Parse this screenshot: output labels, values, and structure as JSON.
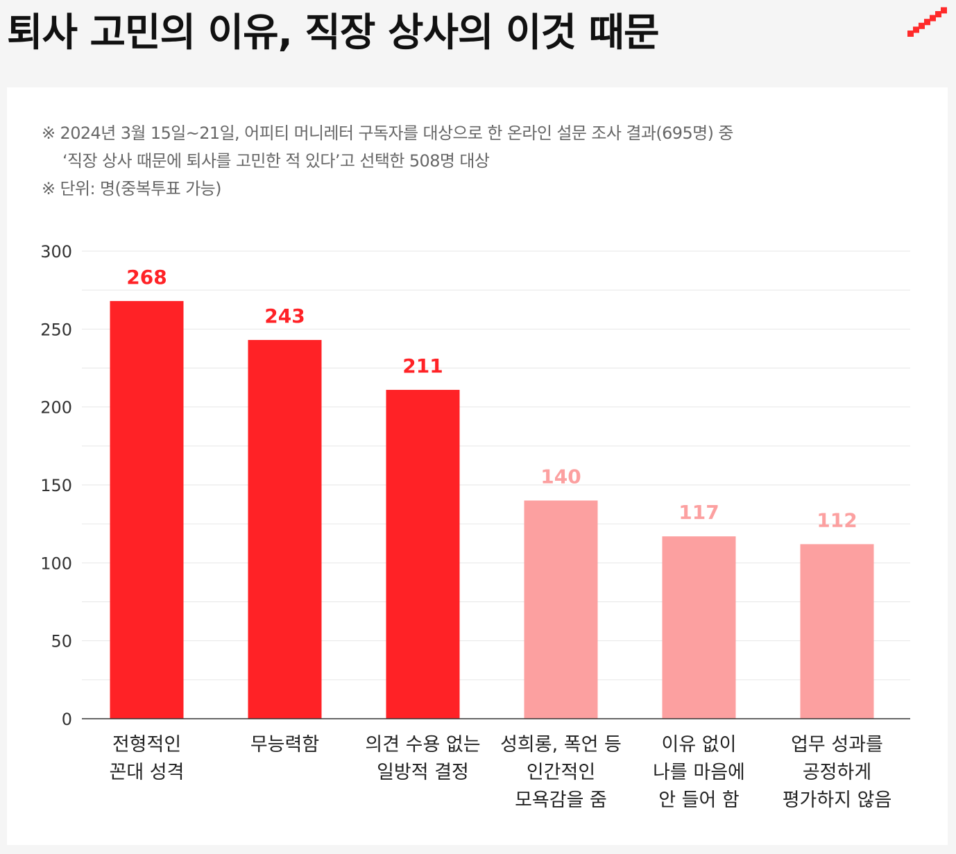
{
  "headline": "퇴사 고민의 이유, 직장 상사의 이것 때문",
  "brand": {
    "icon": "ascending-steps-logo-icon",
    "color": "#ff2a2a"
  },
  "notes": [
    "※ 2024년 3월 15일~21일, 어피티 머니레터 구독자를 대상으로 한 온라인 설문 조사 결과(695명) 중",
    "‘직장 상사 때문에 퇴사를 고민한 적 있다’고 선택한 508명 대상",
    "※ 단위: 명(중복투표 가능)"
  ],
  "colors": {
    "highlight": "#ff2226",
    "muted": "#fca0a0",
    "axis": "#333333",
    "grid": "#e6e6e6",
    "tick_text": "#333333",
    "category_text": "#222222"
  },
  "chart_data": {
    "type": "bar",
    "title": "",
    "xlabel": "",
    "ylabel": "",
    "ylim": [
      0,
      300
    ],
    "yticks": [
      0,
      50,
      100,
      150,
      200,
      250,
      300
    ],
    "grid": true,
    "categories": [
      [
        "전형적인",
        "꼰대 성격"
      ],
      [
        "무능력함"
      ],
      [
        "의견 수용 없는",
        "일방적 결정"
      ],
      [
        "성희롱, 폭언 등",
        "인간적인",
        "모욕감을 줌"
      ],
      [
        "이유 없이",
        "나를 마음에",
        "안 들어 함"
      ],
      [
        "업무 성과를",
        "공정하게",
        "평가하지 않음"
      ]
    ],
    "values": [
      268,
      243,
      211,
      140,
      117,
      112
    ],
    "highlight": [
      true,
      true,
      true,
      false,
      false,
      false
    ]
  }
}
